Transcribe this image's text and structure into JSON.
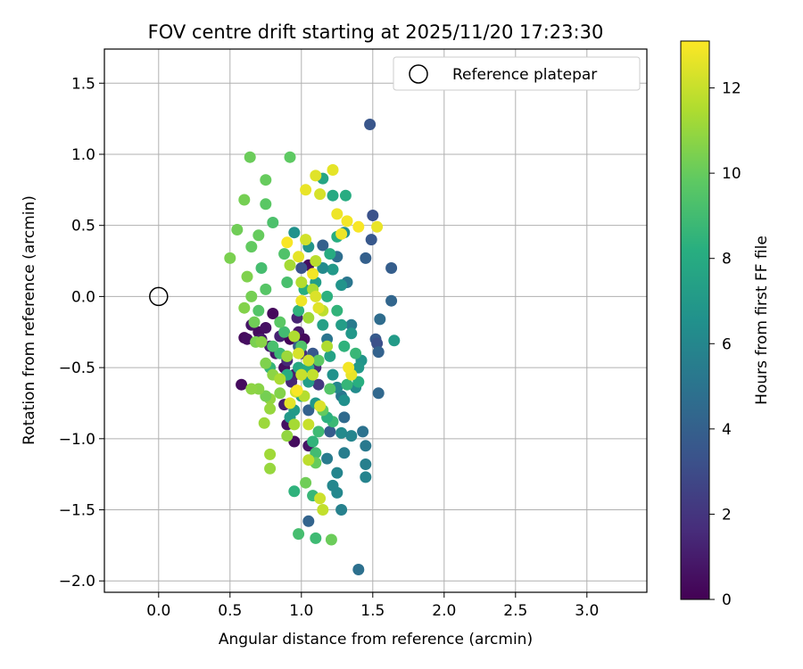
{
  "chart_data": {
    "type": "scatter",
    "title": "FOV centre drift starting at 2025/11/20 17:23:30",
    "xlabel": "Angular distance from reference (arcmin)",
    "ylabel": "Rotation from reference (arcmin)",
    "xlim": [
      -0.38,
      3.42
    ],
    "ylim": [
      -2.08,
      1.74
    ],
    "xticks": [
      0.0,
      0.5,
      1.0,
      1.5,
      2.0,
      2.5,
      3.0
    ],
    "yticks": [
      -2.0,
      -1.5,
      -1.0,
      -0.5,
      0.0,
      0.5,
      1.0,
      1.5
    ],
    "xtick_labels": [
      "0.0",
      "0.5",
      "1.0",
      "1.5",
      "2.0",
      "2.5",
      "3.0"
    ],
    "ytick_labels": [
      "−2.0",
      "−1.5",
      "−1.0",
      "−0.5",
      "0.0",
      "0.5",
      "1.0",
      "1.5"
    ],
    "grid": true,
    "legend": {
      "position": "top-right",
      "entries": [
        "Reference platepar"
      ]
    },
    "reference_point": {
      "x": 0.0,
      "y": 0.0,
      "label": "Reference platepar"
    },
    "colorbar": {
      "label": "Hours from first FF file",
      "min": 0,
      "max": 13.1,
      "colormap": "viridis",
      "ticks": [
        0,
        2,
        4,
        6,
        8,
        10,
        12
      ],
      "tick_labels": [
        "0",
        "2",
        "4",
        "6",
        "8",
        "10",
        "12"
      ]
    },
    "points": [
      {
        "x": 0.58,
        "y": -0.62,
        "c": 0.4
      },
      {
        "x": 0.6,
        "y": -0.29,
        "c": 0.3
      },
      {
        "x": 0.62,
        "y": -0.3,
        "c": 0.5
      },
      {
        "x": 0.65,
        "y": -0.2,
        "c": 0.7
      },
      {
        "x": 0.7,
        "y": -0.25,
        "c": 0.4
      },
      {
        "x": 0.72,
        "y": -0.3,
        "c": 0.9
      },
      {
        "x": 0.75,
        "y": -0.22,
        "c": 0.6
      },
      {
        "x": 0.78,
        "y": -0.35,
        "c": 1.0
      },
      {
        "x": 0.8,
        "y": -0.12,
        "c": 0.3
      },
      {
        "x": 0.82,
        "y": -0.4,
        "c": 0.8
      },
      {
        "x": 0.85,
        "y": -0.28,
        "c": 1.2
      },
      {
        "x": 0.88,
        "y": -0.5,
        "c": 0.5
      },
      {
        "x": 0.9,
        "y": -0.45,
        "c": 1.5
      },
      {
        "x": 0.92,
        "y": -0.3,
        "c": 0.2
      },
      {
        "x": 0.95,
        "y": -0.55,
        "c": 1.1
      },
      {
        "x": 0.98,
        "y": -0.25,
        "c": 0.9
      },
      {
        "x": 1.0,
        "y": -0.4,
        "c": 1.8
      },
      {
        "x": 0.9,
        "y": -0.9,
        "c": 0.6
      },
      {
        "x": 0.95,
        "y": -1.02,
        "c": 0.4
      },
      {
        "x": 1.05,
        "y": -1.05,
        "c": 0.7
      },
      {
        "x": 0.88,
        "y": -0.76,
        "c": 1.0
      },
      {
        "x": 1.05,
        "y": 0.22,
        "c": 0.5
      },
      {
        "x": 1.02,
        "y": -0.3,
        "c": 0.3
      },
      {
        "x": 0.97,
        "y": -0.15,
        "c": 1.3
      },
      {
        "x": 1.1,
        "y": -0.5,
        "c": 1.6
      },
      {
        "x": 1.12,
        "y": -0.62,
        "c": 2.1
      },
      {
        "x": 0.93,
        "y": -0.6,
        "c": 1.4
      },
      {
        "x": 1.48,
        "y": 1.21,
        "c": 3.5
      },
      {
        "x": 1.5,
        "y": 0.57,
        "c": 3.3
      },
      {
        "x": 1.49,
        "y": 0.4,
        "c": 3.6
      },
      {
        "x": 1.45,
        "y": 0.27,
        "c": 4.0
      },
      {
        "x": 1.63,
        "y": 0.2,
        "c": 3.9
      },
      {
        "x": 1.63,
        "y": -0.03,
        "c": 4.3
      },
      {
        "x": 1.55,
        "y": -0.16,
        "c": 4.6
      },
      {
        "x": 1.52,
        "y": -0.3,
        "c": 3.7
      },
      {
        "x": 1.53,
        "y": -0.33,
        "c": 3.2
      },
      {
        "x": 1.54,
        "y": -0.39,
        "c": 4.1
      },
      {
        "x": 1.54,
        "y": -0.68,
        "c": 4.4
      },
      {
        "x": 1.4,
        "y": -1.92,
        "c": 4.8
      },
      {
        "x": 1.05,
        "y": -1.58,
        "c": 4.2
      },
      {
        "x": 1.3,
        "y": -0.85,
        "c": 4.5
      },
      {
        "x": 1.43,
        "y": -0.95,
        "c": 4.9
      },
      {
        "x": 1.2,
        "y": -0.95,
        "c": 3.8
      },
      {
        "x": 1.15,
        "y": 0.36,
        "c": 4.0
      },
      {
        "x": 1.25,
        "y": 0.28,
        "c": 4.7
      },
      {
        "x": 1.0,
        "y": 0.2,
        "c": 3.4
      },
      {
        "x": 0.98,
        "y": -0.35,
        "c": 3.9
      },
      {
        "x": 1.05,
        "y": -0.8,
        "c": 4.1
      },
      {
        "x": 1.08,
        "y": -0.4,
        "c": 3.6
      },
      {
        "x": 1.18,
        "y": -0.3,
        "c": 5.0
      },
      {
        "x": 1.28,
        "y": -0.7,
        "c": 5.2
      },
      {
        "x": 1.35,
        "y": -0.2,
        "c": 5.4
      },
      {
        "x": 1.32,
        "y": 0.1,
        "c": 5.1
      },
      {
        "x": 1.45,
        "y": -1.05,
        "c": 5.3
      },
      {
        "x": 1.45,
        "y": -1.18,
        "c": 5.6
      },
      {
        "x": 1.45,
        "y": -1.27,
        "c": 5.8
      },
      {
        "x": 1.3,
        "y": -1.1,
        "c": 5.5
      },
      {
        "x": 1.25,
        "y": -1.24,
        "c": 5.9
      },
      {
        "x": 1.25,
        "y": -1.38,
        "c": 6.1
      },
      {
        "x": 1.28,
        "y": -1.5,
        "c": 5.7
      },
      {
        "x": 1.22,
        "y": -1.33,
        "c": 6.0
      },
      {
        "x": 1.18,
        "y": -1.14,
        "c": 5.4
      },
      {
        "x": 1.28,
        "y": -0.96,
        "c": 6.2
      },
      {
        "x": 1.35,
        "y": -0.98,
        "c": 5.9
      },
      {
        "x": 1.38,
        "y": -0.64,
        "c": 6.3
      },
      {
        "x": 1.3,
        "y": -0.73,
        "c": 6.5
      },
      {
        "x": 1.25,
        "y": -0.64,
        "c": 6.0
      },
      {
        "x": 1.22,
        "y": -0.55,
        "c": 6.6
      },
      {
        "x": 1.35,
        "y": -0.52,
        "c": 6.4
      },
      {
        "x": 1.42,
        "y": -0.45,
        "c": 6.8
      },
      {
        "x": 1.4,
        "y": -0.5,
        "c": 7.0
      },
      {
        "x": 1.65,
        "y": -0.31,
        "c": 7.1
      },
      {
        "x": 1.35,
        "y": -0.26,
        "c": 6.9
      },
      {
        "x": 1.28,
        "y": -0.2,
        "c": 7.2
      },
      {
        "x": 1.22,
        "y": 0.19,
        "c": 7.0
      },
      {
        "x": 1.28,
        "y": 0.08,
        "c": 6.7
      },
      {
        "x": 1.3,
        "y": 0.45,
        "c": 6.5
      },
      {
        "x": 1.15,
        "y": 0.2,
        "c": 6.2
      },
      {
        "x": 0.95,
        "y": 0.45,
        "c": 6.6
      },
      {
        "x": 1.05,
        "y": 0.35,
        "c": 6.8
      },
      {
        "x": 1.1,
        "y": 0.1,
        "c": 7.3
      },
      {
        "x": 1.15,
        "y": -0.2,
        "c": 7.4
      },
      {
        "x": 1.2,
        "y": -0.42,
        "c": 7.5
      },
      {
        "x": 1.1,
        "y": -0.75,
        "c": 6.9
      },
      {
        "x": 0.95,
        "y": -0.8,
        "c": 7.1
      },
      {
        "x": 0.92,
        "y": -0.85,
        "c": 7.0
      },
      {
        "x": 1.0,
        "y": -0.7,
        "c": 7.6
      },
      {
        "x": 1.05,
        "y": -0.6,
        "c": 7.2
      },
      {
        "x": 0.98,
        "y": -0.5,
        "c": 7.8
      },
      {
        "x": 1.15,
        "y": 0.83,
        "c": 7.7
      },
      {
        "x": 1.22,
        "y": 0.71,
        "c": 7.9
      },
      {
        "x": 1.31,
        "y": 0.71,
        "c": 8.1
      },
      {
        "x": 1.25,
        "y": 0.42,
        "c": 8.2
      },
      {
        "x": 1.2,
        "y": 0.3,
        "c": 8.0
      },
      {
        "x": 1.18,
        "y": 0.0,
        "c": 8.3
      },
      {
        "x": 1.25,
        "y": -0.1,
        "c": 8.5
      },
      {
        "x": 1.3,
        "y": -0.35,
        "c": 8.4
      },
      {
        "x": 1.38,
        "y": -0.4,
        "c": 8.7
      },
      {
        "x": 1.4,
        "y": -0.6,
        "c": 8.2
      },
      {
        "x": 1.32,
        "y": -0.62,
        "c": 8.6
      },
      {
        "x": 1.22,
        "y": -0.88,
        "c": 8.8
      },
      {
        "x": 1.18,
        "y": -0.85,
        "c": 8.3
      },
      {
        "x": 1.12,
        "y": -0.95,
        "c": 8.9
      },
      {
        "x": 1.08,
        "y": -1.02,
        "c": 8.5
      },
      {
        "x": 1.1,
        "y": -1.1,
        "c": 9.0
      },
      {
        "x": 1.08,
        "y": -1.4,
        "c": 8.7
      },
      {
        "x": 0.95,
        "y": -1.37,
        "c": 8.4
      },
      {
        "x": 1.1,
        "y": -1.7,
        "c": 8.9
      },
      {
        "x": 0.98,
        "y": -1.67,
        "c": 9.1
      },
      {
        "x": 1.05,
        "y": -0.5,
        "c": 8.1
      },
      {
        "x": 0.9,
        "y": -0.55,
        "c": 8.0
      },
      {
        "x": 0.85,
        "y": -0.4,
        "c": 8.8
      },
      {
        "x": 0.8,
        "y": -0.35,
        "c": 9.2
      },
      {
        "x": 0.78,
        "y": -0.5,
        "c": 8.6
      },
      {
        "x": 0.88,
        "y": -0.25,
        "c": 9.0
      },
      {
        "x": 0.98,
        "y": -0.1,
        "c": 8.4
      },
      {
        "x": 1.02,
        "y": 0.05,
        "c": 8.2
      },
      {
        "x": 0.8,
        "y": 0.52,
        "c": 9.3
      },
      {
        "x": 0.88,
        "y": 0.3,
        "c": 9.4
      },
      {
        "x": 0.72,
        "y": 0.2,
        "c": 9.1
      },
      {
        "x": 0.75,
        "y": 0.05,
        "c": 9.6
      },
      {
        "x": 0.7,
        "y": -0.1,
        "c": 9.5
      },
      {
        "x": 0.9,
        "y": 0.1,
        "c": 9.2
      },
      {
        "x": 0.85,
        "y": -0.18,
        "c": 9.7
      },
      {
        "x": 1.0,
        "y": -0.35,
        "c": 9.4
      },
      {
        "x": 1.12,
        "y": -0.45,
        "c": 9.8
      },
      {
        "x": 1.2,
        "y": -0.65,
        "c": 9.5
      },
      {
        "x": 1.15,
        "y": -0.8,
        "c": 9.9
      },
      {
        "x": 1.1,
        "y": -1.17,
        "c": 10.0
      },
      {
        "x": 1.03,
        "y": -1.31,
        "c": 10.2
      },
      {
        "x": 1.21,
        "y": -1.71,
        "c": 10.1
      },
      {
        "x": 0.92,
        "y": 0.98,
        "c": 9.8
      },
      {
        "x": 0.75,
        "y": 0.82,
        "c": 10.0
      },
      {
        "x": 0.75,
        "y": 0.65,
        "c": 9.7
      },
      {
        "x": 0.64,
        "y": 0.98,
        "c": 10.1
      },
      {
        "x": 0.6,
        "y": 0.68,
        "c": 10.3
      },
      {
        "x": 0.55,
        "y": 0.47,
        "c": 10.2
      },
      {
        "x": 0.5,
        "y": 0.27,
        "c": 10.4
      },
      {
        "x": 0.65,
        "y": 0.35,
        "c": 9.9
      },
      {
        "x": 0.7,
        "y": 0.43,
        "c": 10.0
      },
      {
        "x": 0.62,
        "y": 0.14,
        "c": 10.5
      },
      {
        "x": 0.65,
        "y": 0.0,
        "c": 10.3
      },
      {
        "x": 0.6,
        "y": -0.08,
        "c": 10.6
      },
      {
        "x": 0.67,
        "y": -0.18,
        "c": 10.2
      },
      {
        "x": 0.68,
        "y": -0.32,
        "c": 10.4
      },
      {
        "x": 0.72,
        "y": -0.32,
        "c": 10.7
      },
      {
        "x": 0.75,
        "y": -0.47,
        "c": 10.5
      },
      {
        "x": 0.8,
        "y": -0.55,
        "c": 10.8
      },
      {
        "x": 0.85,
        "y": -0.68,
        "c": 10.6
      },
      {
        "x": 0.78,
        "y": -0.72,
        "c": 10.9
      },
      {
        "x": 0.75,
        "y": -0.7,
        "c": 10.3
      },
      {
        "x": 0.7,
        "y": -0.65,
        "c": 10.7
      },
      {
        "x": 0.65,
        "y": -0.65,
        "c": 10.8
      },
      {
        "x": 0.78,
        "y": -0.79,
        "c": 11.0
      },
      {
        "x": 0.74,
        "y": -0.89,
        "c": 11.1
      },
      {
        "x": 0.9,
        "y": -0.98,
        "c": 10.9
      },
      {
        "x": 0.78,
        "y": -1.11,
        "c": 11.2
      },
      {
        "x": 0.78,
        "y": -1.21,
        "c": 11.0
      },
      {
        "x": 0.95,
        "y": -0.9,
        "c": 11.3
      },
      {
        "x": 0.85,
        "y": -0.58,
        "c": 11.4
      },
      {
        "x": 0.9,
        "y": -0.42,
        "c": 11.1
      },
      {
        "x": 0.95,
        "y": -0.28,
        "c": 11.5
      },
      {
        "x": 1.05,
        "y": -0.15,
        "c": 11.2
      },
      {
        "x": 1.0,
        "y": 0.1,
        "c": 11.6
      },
      {
        "x": 0.92,
        "y": 0.22,
        "c": 11.3
      },
      {
        "x": 1.1,
        "y": 0.25,
        "c": 11.7
      },
      {
        "x": 1.08,
        "y": 0.05,
        "c": 11.4
      },
      {
        "x": 1.15,
        "y": -0.1,
        "c": 11.8
      },
      {
        "x": 1.18,
        "y": -0.35,
        "c": 11.5
      },
      {
        "x": 1.08,
        "y": -0.55,
        "c": 11.9
      },
      {
        "x": 1.02,
        "y": -0.7,
        "c": 11.6
      },
      {
        "x": 1.05,
        "y": -0.9,
        "c": 12.0
      },
      {
        "x": 1.05,
        "y": -1.15,
        "c": 11.8
      },
      {
        "x": 1.13,
        "y": -1.42,
        "c": 12.1
      },
      {
        "x": 1.15,
        "y": -1.5,
        "c": 11.9
      },
      {
        "x": 0.96,
        "y": -0.67,
        "c": 12.2
      },
      {
        "x": 1.0,
        "y": -0.55,
        "c": 12.0
      },
      {
        "x": 0.98,
        "y": -0.4,
        "c": 12.3
      },
      {
        "x": 1.05,
        "y": -0.45,
        "c": 12.1
      },
      {
        "x": 1.1,
        "y": 0.0,
        "c": 12.4
      },
      {
        "x": 1.03,
        "y": 0.4,
        "c": 12.2
      },
      {
        "x": 1.1,
        "y": 0.85,
        "c": 12.5
      },
      {
        "x": 1.22,
        "y": 0.89,
        "c": 12.6
      },
      {
        "x": 1.13,
        "y": 0.72,
        "c": 12.3
      },
      {
        "x": 1.03,
        "y": 0.75,
        "c": 12.7
      },
      {
        "x": 1.25,
        "y": 0.58,
        "c": 12.8
      },
      {
        "x": 1.32,
        "y": 0.53,
        "c": 12.9
      },
      {
        "x": 1.4,
        "y": 0.49,
        "c": 13.0
      },
      {
        "x": 1.53,
        "y": 0.49,
        "c": 12.7
      },
      {
        "x": 1.28,
        "y": 0.44,
        "c": 12.8
      },
      {
        "x": 0.9,
        "y": 0.38,
        "c": 13.0
      },
      {
        "x": 0.98,
        "y": 0.28,
        "c": 12.6
      },
      {
        "x": 1.08,
        "y": 0.16,
        "c": 12.9
      },
      {
        "x": 1.12,
        "y": -0.08,
        "c": 12.5
      },
      {
        "x": 1.0,
        "y": -0.03,
        "c": 12.8
      },
      {
        "x": 1.35,
        "y": -0.55,
        "c": 12.7
      },
      {
        "x": 1.33,
        "y": -0.5,
        "c": 12.9
      },
      {
        "x": 0.97,
        "y": -0.66,
        "c": 13.0
      },
      {
        "x": 0.92,
        "y": -0.75,
        "c": 12.6
      },
      {
        "x": 1.13,
        "y": -0.77,
        "c": 12.4
      }
    ]
  }
}
